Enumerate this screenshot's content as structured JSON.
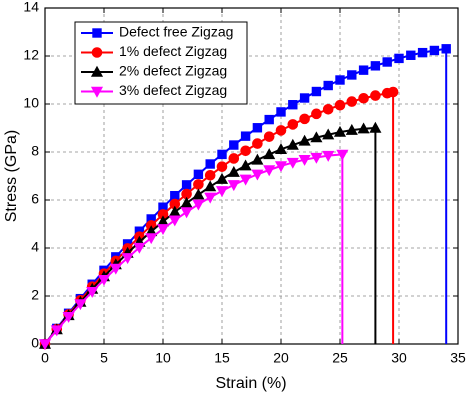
{
  "chart_data": {
    "type": "line",
    "xlabel": "Strain (%)",
    "ylabel": "Stress (GPa)",
    "xlim": [
      0,
      35
    ],
    "ylim": [
      0,
      14
    ],
    "xticks": [
      0,
      5,
      10,
      15,
      20,
      25,
      30,
      35
    ],
    "yticks": [
      0,
      2,
      4,
      6,
      8,
      10,
      12,
      14
    ],
    "grid": true,
    "legend": "upper left",
    "series": [
      {
        "name": "Defect free Zigzag",
        "color": "#0000ff",
        "marker": "square",
        "x": [
          0,
          1,
          2,
          3,
          4,
          5,
          6,
          7,
          8,
          9,
          10,
          11,
          12,
          13,
          14,
          15,
          16,
          17,
          18,
          19,
          20,
          21,
          22,
          23,
          24,
          25,
          26,
          27,
          28,
          29,
          30,
          31,
          32,
          33,
          34,
          34
        ],
        "values": [
          0,
          0.65,
          1.28,
          1.89,
          2.49,
          3.07,
          3.63,
          4.17,
          4.7,
          5.21,
          5.7,
          6.18,
          6.63,
          7.07,
          7.5,
          7.9,
          8.29,
          8.66,
          9.01,
          9.35,
          9.67,
          9.97,
          10.25,
          10.52,
          10.77,
          11,
          11.21,
          11.41,
          11.59,
          11.75,
          11.9,
          12.03,
          12.14,
          12.23,
          12.3,
          0
        ]
      },
      {
        "name": "1% defect Zigzag",
        "color": "#ff0000",
        "marker": "circle",
        "x": [
          0,
          1,
          2,
          3,
          4,
          5,
          6,
          7,
          8,
          9,
          10,
          11,
          12,
          13,
          14,
          15,
          16,
          17,
          18,
          19,
          20,
          21,
          22,
          23,
          24,
          25,
          26,
          27,
          28,
          29,
          29.5,
          29.5
        ],
        "values": [
          0,
          0.62,
          1.23,
          1.82,
          2.39,
          2.93,
          3.46,
          3.98,
          4.47,
          4.94,
          5.4,
          5.83,
          6.25,
          6.65,
          7.03,
          7.39,
          7.73,
          8.05,
          8.35,
          8.64,
          8.9,
          9.15,
          9.38,
          9.59,
          9.78,
          9.95,
          10.1,
          10.24,
          10.35,
          10.45,
          10.5,
          0
        ]
      },
      {
        "name": "2% defect Zigzag",
        "color": "#000000",
        "marker": "triangle-up",
        "x": [
          0,
          1,
          2,
          3,
          4,
          5,
          6,
          7,
          8,
          9,
          10,
          11,
          12,
          13,
          14,
          15,
          16,
          17,
          18,
          19,
          20,
          21,
          22,
          23,
          24,
          25,
          26,
          27,
          28,
          28
        ],
        "values": [
          0,
          0.6,
          1.19,
          1.75,
          2.29,
          2.81,
          3.31,
          3.79,
          4.25,
          4.69,
          5.1,
          5.5,
          5.87,
          6.22,
          6.56,
          6.87,
          7.16,
          7.43,
          7.67,
          7.9,
          8.11,
          8.29,
          8.46,
          8.6,
          8.72,
          8.83,
          8.91,
          8.97,
          9,
          0
        ]
      },
      {
        "name": "3% defect Zigzag",
        "color": "#ff00ff",
        "marker": "triangle-down",
        "x": [
          0,
          1,
          2,
          3,
          4,
          5,
          6,
          7,
          8,
          9,
          10,
          11,
          12,
          13,
          14,
          15,
          16,
          17,
          18,
          19,
          20,
          21,
          22,
          23,
          24,
          25.2,
          25.2
        ],
        "values": [
          0,
          0.58,
          1.14,
          1.67,
          2.18,
          2.68,
          3.15,
          3.59,
          4.02,
          4.42,
          4.8,
          5.16,
          5.5,
          5.82,
          6.11,
          6.38,
          6.63,
          6.86,
          7.07,
          7.25,
          7.42,
          7.56,
          7.68,
          7.77,
          7.85,
          7.9,
          0
        ]
      }
    ]
  }
}
